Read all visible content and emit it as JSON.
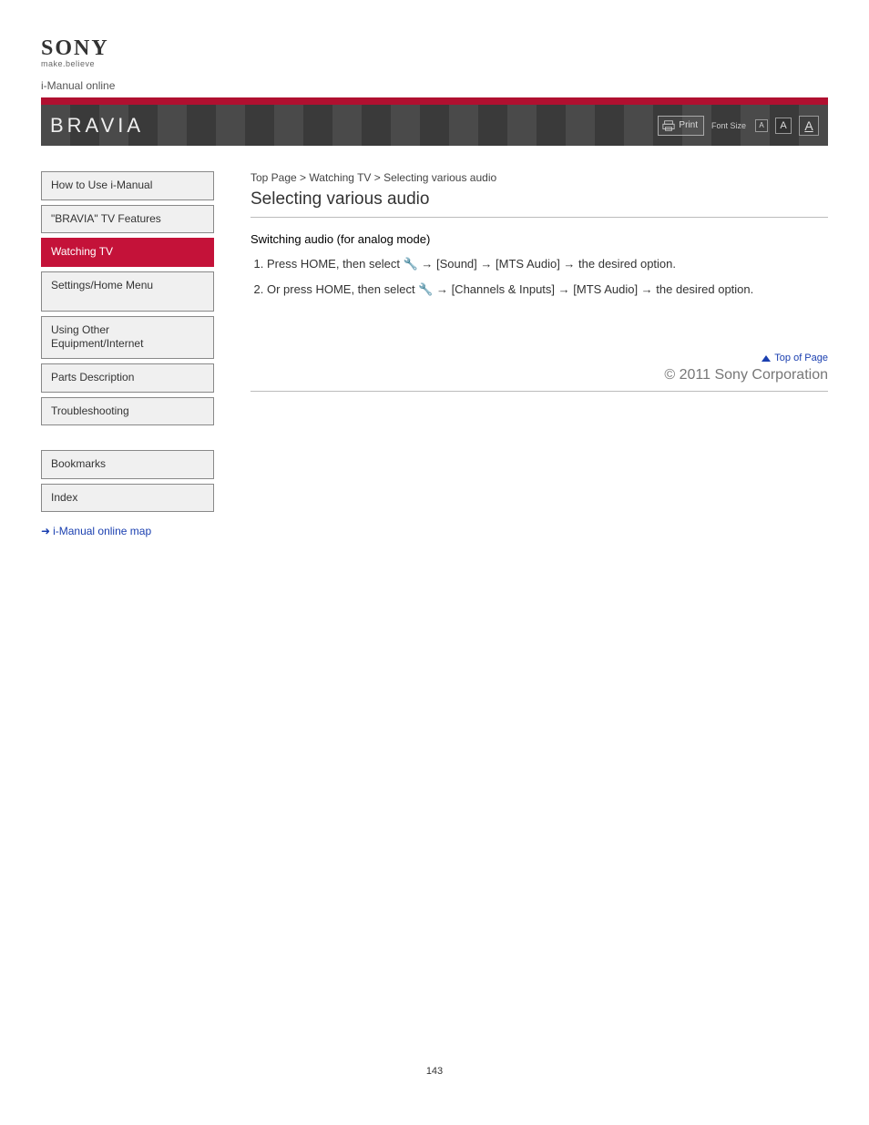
{
  "logo": {
    "brand": "SONY",
    "tagline": "make.believe"
  },
  "top_gray": "i-Manual online",
  "band_brand": "BRAVIA",
  "print_label": "Print",
  "font_label": "Font Size",
  "font_buttons": {
    "s": "A",
    "m": "A",
    "l": "A"
  },
  "nav": [
    {
      "label": "How to Use i-Manual",
      "active": false
    },
    {
      "label": "\"BRAVIA\" TV Features",
      "active": false
    },
    {
      "label": "Watching TV",
      "active": true
    },
    {
      "label": "Settings/Home Menu",
      "active": false,
      "tall": true
    },
    {
      "label": "Using Other Equipment/Internet",
      "active": false
    },
    {
      "label": "Parts Description",
      "active": false
    },
    {
      "label": "Troubleshooting",
      "active": false
    },
    {
      "label": "Bookmarks",
      "active": false,
      "gapBefore": true
    },
    {
      "label": "Index",
      "active": false
    }
  ],
  "bookmarks_link": "i-Manual online map",
  "breadcrumb": "Top Page > Watching TV > Selecting various audio",
  "section_title": "Selecting various audio",
  "instr_title": "Switching audio (for analog mode)",
  "instructions": [
    "Press HOME, then select 🔧 → [Sound] → [MTS Audio] → the desired option.",
    "Or press HOME, then select 🔧 → [Channels & Inputs] → [MTS Audio] → the desired option."
  ],
  "trademark": "© 2011 Sony Corporation",
  "top_link": "Top of Page",
  "page_number": "143",
  "colors": {
    "accent_red": "#c41239",
    "link_blue": "#1a3fb0",
    "header_stripe_a": "#4a4a4a",
    "header_stripe_b": "#3a3a3a",
    "border_gray": "#888",
    "nav_bg": "#f0f0f0"
  }
}
